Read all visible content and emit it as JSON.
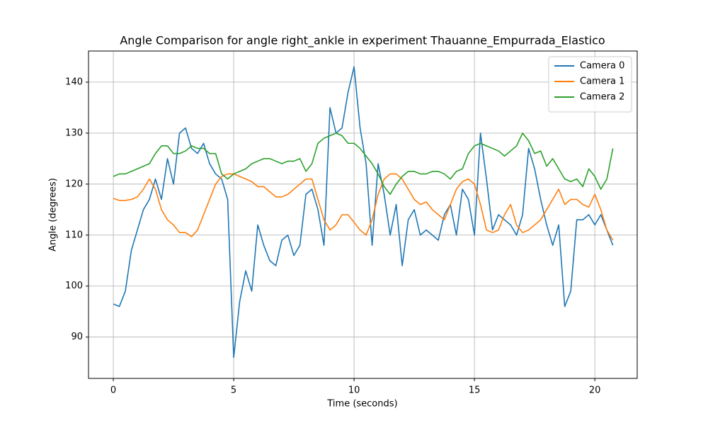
{
  "chart_data": {
    "type": "line",
    "title": "Angle Comparison for angle right_ankle in experiment Thauanne_Empurrada_Elastico",
    "xlabel": "Time (seconds)",
    "ylabel": "Angle (degrees)",
    "x": [
      0,
      0.25,
      0.5,
      0.75,
      1,
      1.25,
      1.5,
      1.75,
      2,
      2.25,
      2.5,
      2.75,
      3,
      3.25,
      3.5,
      3.75,
      4,
      4.25,
      4.5,
      4.75,
      5,
      5.25,
      5.5,
      5.75,
      6,
      6.25,
      6.5,
      6.75,
      7,
      7.25,
      7.5,
      7.75,
      8,
      8.25,
      8.5,
      8.75,
      9,
      9.25,
      9.5,
      9.75,
      10,
      10.25,
      10.5,
      10.75,
      11,
      11.25,
      11.5,
      11.75,
      12,
      12.25,
      12.5,
      12.75,
      13,
      13.25,
      13.5,
      13.75,
      14,
      14.25,
      14.5,
      14.75,
      15,
      15.25,
      15.5,
      15.75,
      16,
      16.25,
      16.5,
      16.75,
      17,
      17.25,
      17.5,
      17.75,
      18,
      18.25,
      18.5,
      18.75,
      19,
      19.25,
      19.5,
      19.75,
      20,
      20.25,
      20.5,
      20.75
    ],
    "series": [
      {
        "name": "Camera 0",
        "color": "#1f77b4",
        "values": [
          96.5,
          96,
          99,
          107,
          111,
          115,
          117,
          121,
          117,
          125,
          120,
          130,
          131,
          127,
          126,
          128,
          124,
          122,
          121,
          117,
          86,
          97,
          103,
          99,
          112,
          108,
          105,
          104,
          109,
          110,
          106,
          108,
          118,
          119,
          115,
          108,
          135,
          130,
          131,
          138,
          143,
          131,
          124,
          108,
          124,
          118,
          110,
          116,
          104,
          113,
          115,
          110,
          111,
          110,
          109,
          114,
          116,
          110,
          119,
          117,
          110,
          130,
          121,
          111,
          114,
          113,
          112,
          110,
          114,
          127,
          123,
          117,
          112,
          108,
          112,
          96,
          99,
          113,
          113,
          114,
          112,
          114,
          111,
          108
        ]
      },
      {
        "name": "Camera 1",
        "color": "#ff7f0e",
        "values": [
          117.2,
          116.8,
          116.8,
          117,
          117.5,
          119,
          121,
          119,
          115,
          113,
          112,
          110.5,
          110.5,
          109.7,
          111,
          114,
          117,
          120,
          121.5,
          122,
          122,
          121.5,
          121,
          120.5,
          119.5,
          119.5,
          118.5,
          117.5,
          117.5,
          118,
          119,
          120,
          121,
          121,
          117,
          113,
          111,
          112,
          114,
          114,
          112.5,
          111,
          110,
          113,
          118,
          121,
          122,
          122,
          121,
          119,
          117,
          116,
          116.5,
          115,
          114,
          113,
          116,
          119,
          120.5,
          121,
          120,
          116,
          111,
          110.5,
          111,
          114,
          116,
          112,
          110.5,
          111,
          112,
          113,
          115,
          117,
          119,
          116,
          117,
          117,
          116,
          115.5,
          118,
          115,
          111,
          109
        ]
      },
      {
        "name": "Camera 2",
        "color": "#2ca02c",
        "values": [
          121.5,
          122,
          122,
          122.5,
          123,
          123.5,
          124,
          126,
          127.5,
          127.5,
          126,
          126,
          126.5,
          127.5,
          127,
          127,
          126,
          126,
          122,
          121,
          122,
          122.5,
          123,
          124,
          124.5,
          125,
          125,
          124.5,
          124,
          124.5,
          124.5,
          125,
          122.5,
          124,
          128,
          129,
          129.5,
          130,
          129.5,
          128,
          128,
          127,
          125.5,
          124,
          122,
          119.5,
          118,
          120,
          121.5,
          122.5,
          122.5,
          122,
          122,
          122.5,
          122.5,
          122,
          121,
          122.5,
          123,
          126,
          127.5,
          128,
          127.5,
          127,
          126.5,
          125.5,
          126.5,
          127.5,
          130,
          128.5,
          126,
          126.5,
          123.5,
          125,
          123,
          121,
          120.5,
          121,
          119.5,
          123,
          121.5,
          119,
          121,
          127
        ]
      }
    ],
    "xlim": [
      -1.03,
      21.76
    ],
    "ylim": [
      81.9,
      146.1
    ],
    "xticks": [
      0,
      5,
      10,
      15,
      20
    ],
    "yticks": [
      90,
      100,
      110,
      120,
      130,
      140
    ],
    "grid": true,
    "legend": "upper right"
  }
}
